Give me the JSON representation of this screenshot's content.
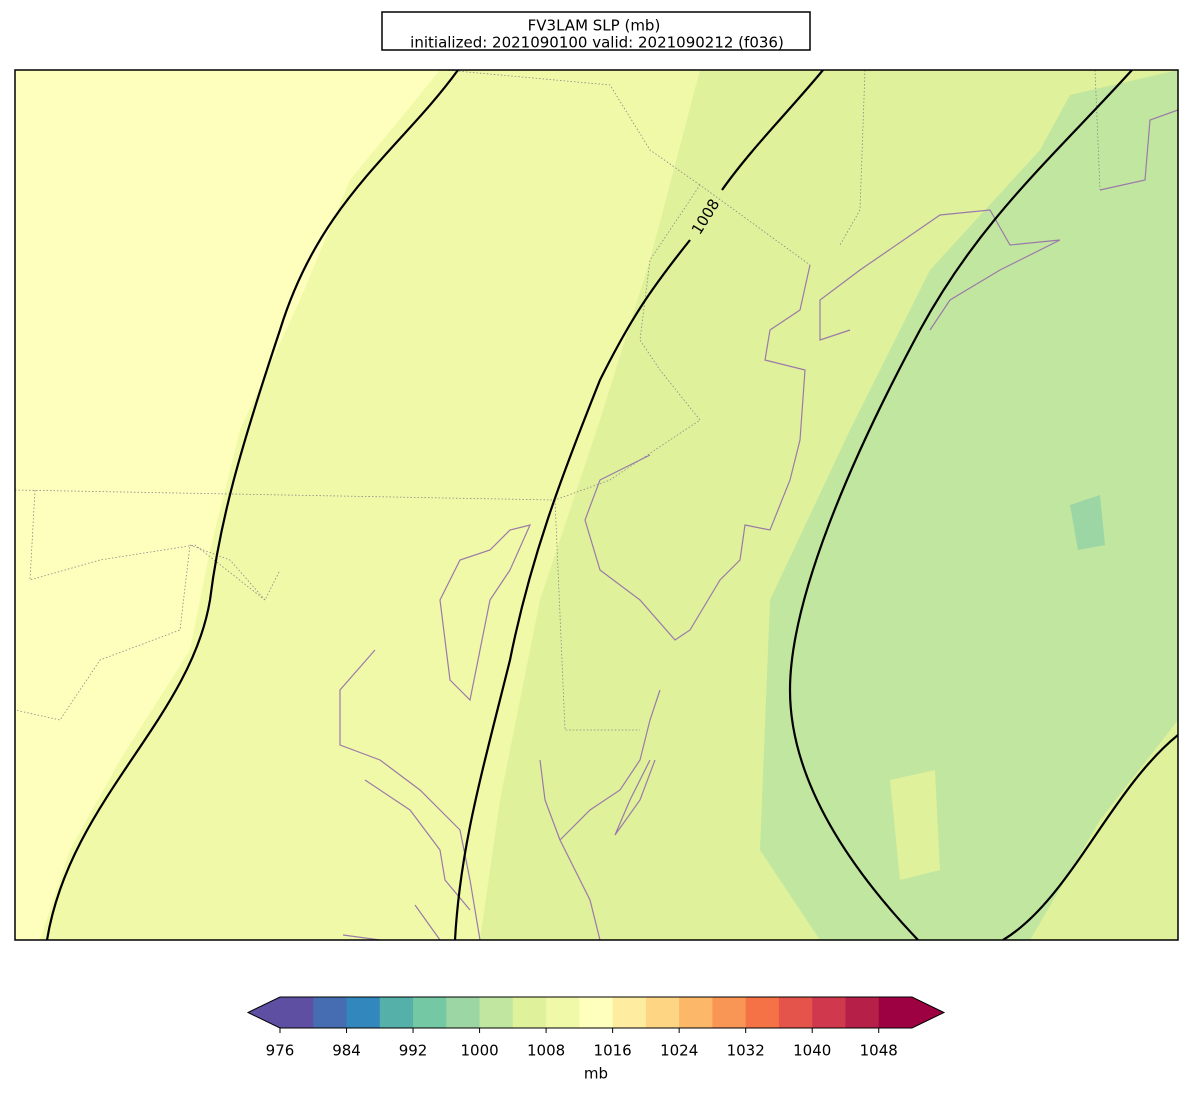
{
  "title": {
    "line1": "FV3LAM SLP (mb)",
    "line2": "initialized: 2021090100 valid: 2021090212 (f036)"
  },
  "map": {
    "contour_labels": [
      "1008"
    ]
  },
  "colorbar": {
    "label": "mb",
    "boundaries": [
      976,
      980,
      984,
      988,
      992,
      996,
      1000,
      1004,
      1008,
      1012,
      1016,
      1020,
      1024,
      1028,
      1032,
      1036,
      1040,
      1044,
      1048,
      1052
    ],
    "colors": [
      "#5e4fa2",
      "#5e4fa2",
      "#466db1",
      "#3288bd",
      "#55b0aa",
      "#75c8a4",
      "#9cd6a4",
      "#c1e6a0",
      "#dff19b",
      "#f0f9a8",
      "#fefebd",
      "#feeda0",
      "#fed582",
      "#fdb768",
      "#f99555",
      "#f47245",
      "#e4544a",
      "#d0384e",
      "#b51f48",
      "#9e0142",
      "#9e0142"
    ],
    "ticks": [
      976,
      984,
      992,
      1000,
      1008,
      1016,
      1024,
      1032,
      1040,
      1048
    ]
  }
}
